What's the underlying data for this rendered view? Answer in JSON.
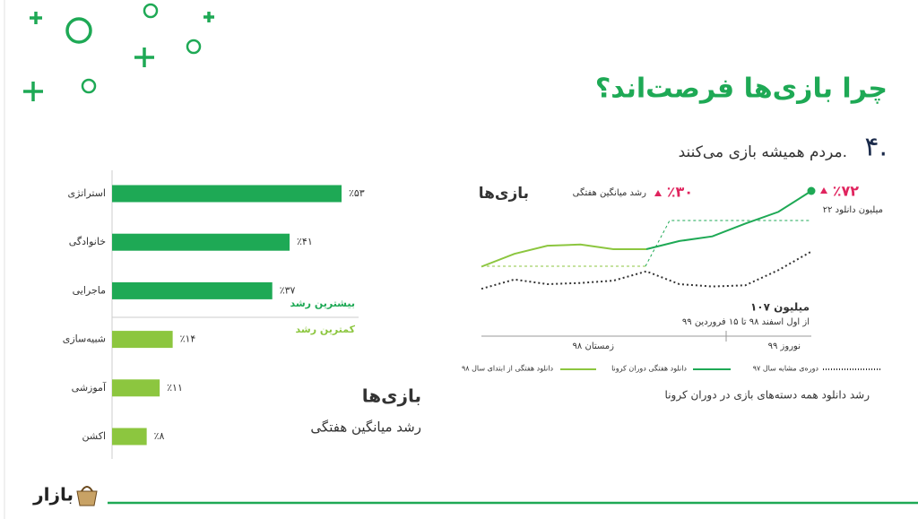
{
  "slide": {
    "title": "چرا بازی‌ها فرصت‌اند؟",
    "number": "۴.",
    "subtitle": "مردم همیشه بازی می‌کنند.",
    "side_title": "بازی‌ها",
    "side_subtitle": "رشد میانگین هفتگی",
    "logo": "بازار"
  },
  "chart_data": [
    {
      "type": "hbar",
      "categories": [
        "استراتژی",
        "خانوادگی",
        "ماجرایی",
        "شبیه‌سازی",
        "آموزشی",
        "اکشن"
      ],
      "values": [
        53,
        41,
        37,
        14,
        11,
        8
      ],
      "value_labels": [
        "٪۵۳",
        "٪۴۱",
        "٪۳۷",
        "٪۱۴",
        "٪۱۱",
        "٪۸"
      ],
      "colors": [
        "#1ea955",
        "#1ea955",
        "#1ea955",
        "#8cc63f",
        "#8cc63f",
        "#8cc63f"
      ],
      "annotations": [
        "بیشترین رشد",
        "کمترین رشد"
      ]
    },
    {
      "type": "line",
      "title": "بازی‌ها",
      "growth_label": "٪۳۰",
      "growth_caption": "رشد میانگین هفتگی",
      "peak_label": "٪۷۲",
      "peak_caption": "۲۲ میلیون دانلود",
      "total_label": "۱۰۷ میلیون",
      "total_caption": "از اول اسفند ۹۸ تا ۱۵ فروردین ۹۹",
      "periods": [
        "زمستان ۹۸",
        "نوروز ۹۹"
      ],
      "caption": "رشد دانلود همه دسته‌های بازی در دوران کرونا",
      "categories": [
        null,
        null,
        null,
        null,
        null,
        null,
        null,
        null,
        null,
        null,
        null
      ],
      "ylim": [
        0,
        100
      ],
      "series": [
        {
          "name": "دانلود هفتگی از ابتدای سال ۹۸",
          "color": "#8cc63f",
          "values": [
            25,
            36,
            43,
            44,
            40,
            40,
            null,
            null,
            null,
            null,
            null
          ]
        },
        {
          "name": "دانلود هفتگی دوران کرونا",
          "color": "#1ea955",
          "values": [
            null,
            null,
            null,
            null,
            null,
            40,
            47,
            51,
            62,
            72,
            90
          ]
        },
        {
          "name": "دوره‌ی مشابه سال ۹۷",
          "color": "#333333",
          "dotted": true,
          "values": [
            6,
            14,
            10,
            11,
            13,
            21,
            10,
            8,
            9,
            22,
            38
          ]
        }
      ]
    }
  ]
}
